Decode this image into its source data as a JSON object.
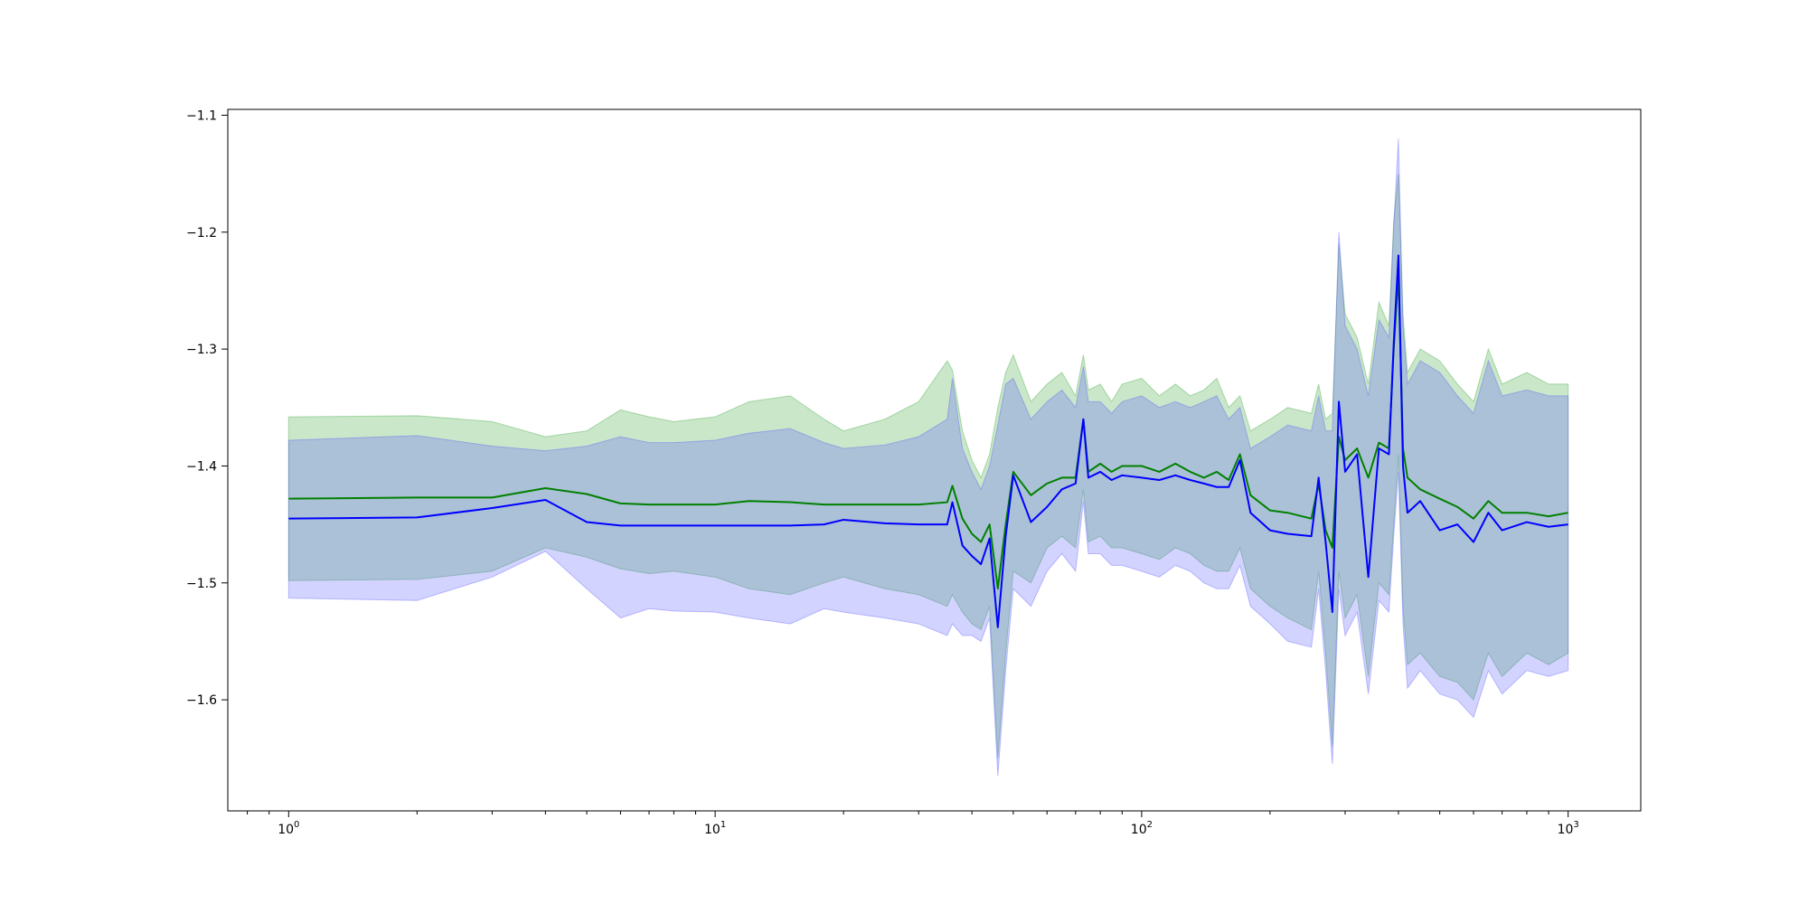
{
  "chart_data": {
    "type": "line",
    "title": "",
    "xlabel": "",
    "ylabel": "",
    "xscale": "log",
    "xlim": [
      0.72,
      1480
    ],
    "ylim": [
      -1.695,
      -1.095
    ],
    "grid": false,
    "legend": "none",
    "x_ticks": [
      {
        "value": 1,
        "base": "10",
        "exp": "0"
      },
      {
        "value": 10,
        "base": "10",
        "exp": "1"
      },
      {
        "value": 100,
        "base": "10",
        "exp": "2"
      },
      {
        "value": 1000,
        "base": "10",
        "exp": "3"
      }
    ],
    "y_ticks": [
      {
        "value": -1.1,
        "label": "−1.1"
      },
      {
        "value": -1.2,
        "label": "−1.2"
      },
      {
        "value": -1.3,
        "label": "−1.3"
      },
      {
        "value": -1.4,
        "label": "−1.4"
      },
      {
        "value": -1.5,
        "label": "−1.5"
      },
      {
        "value": -1.6,
        "label": "−1.6"
      }
    ],
    "colors": {
      "green_line": "#008000",
      "blue_line": "#0000ff",
      "green_band": "#2ca02c",
      "blue_band": "#4f4fff"
    },
    "series": [
      {
        "color": "green",
        "x": [
          1,
          2,
          3,
          4,
          5,
          6,
          7,
          8,
          10,
          12,
          15,
          18,
          20,
          25,
          30,
          35,
          36,
          38,
          40,
          42,
          44,
          46,
          48,
          50,
          55,
          60,
          65,
          70,
          73,
          75,
          80,
          85,
          90,
          100,
          110,
          120,
          130,
          140,
          150,
          160,
          170,
          180,
          200,
          220,
          250,
          260,
          270,
          280,
          290,
          300,
          320,
          340,
          360,
          380,
          390,
          400,
          410,
          420,
          450,
          500,
          550,
          600,
          650,
          700,
          800,
          900,
          1000
        ],
        "y": [
          -1.428,
          -1.427,
          -1.427,
          -1.419,
          -1.424,
          -1.432,
          -1.433,
          -1.433,
          -1.433,
          -1.43,
          -1.431,
          -1.433,
          -1.433,
          -1.433,
          -1.433,
          -1.431,
          -1.417,
          -1.445,
          -1.458,
          -1.465,
          -1.45,
          -1.505,
          -1.45,
          -1.405,
          -1.425,
          -1.415,
          -1.41,
          -1.41,
          -1.36,
          -1.405,
          -1.398,
          -1.405,
          -1.4,
          -1.4,
          -1.405,
          -1.398,
          -1.405,
          -1.41,
          -1.405,
          -1.412,
          -1.39,
          -1.425,
          -1.438,
          -1.44,
          -1.445,
          -1.415,
          -1.455,
          -1.47,
          -1.375,
          -1.395,
          -1.385,
          -1.41,
          -1.38,
          -1.385,
          -1.3,
          -1.235,
          -1.385,
          -1.41,
          -1.42,
          -1.428,
          -1.435,
          -1.445,
          -1.43,
          -1.44,
          -1.44,
          -1.443,
          -1.44
        ]
      },
      {
        "color": "blue",
        "x": [
          1,
          2,
          3,
          4,
          5,
          6,
          7,
          8,
          10,
          12,
          15,
          18,
          20,
          25,
          30,
          35,
          36,
          38,
          40,
          42,
          44,
          46,
          48,
          50,
          55,
          60,
          65,
          70,
          73,
          75,
          80,
          85,
          90,
          100,
          110,
          120,
          130,
          140,
          150,
          160,
          170,
          180,
          200,
          220,
          250,
          260,
          270,
          280,
          290,
          300,
          320,
          340,
          360,
          380,
          390,
          400,
          410,
          420,
          450,
          500,
          550,
          600,
          650,
          700,
          800,
          900,
          1000
        ],
        "y": [
          -1.445,
          -1.444,
          -1.436,
          -1.429,
          -1.448,
          -1.451,
          -1.451,
          -1.451,
          -1.451,
          -1.451,
          -1.451,
          -1.45,
          -1.446,
          -1.449,
          -1.45,
          -1.45,
          -1.431,
          -1.468,
          -1.477,
          -1.484,
          -1.462,
          -1.538,
          -1.46,
          -1.408,
          -1.448,
          -1.435,
          -1.42,
          -1.415,
          -1.36,
          -1.41,
          -1.405,
          -1.412,
          -1.408,
          -1.41,
          -1.412,
          -1.408,
          -1.412,
          -1.415,
          -1.418,
          -1.418,
          -1.395,
          -1.44,
          -1.455,
          -1.458,
          -1.46,
          -1.41,
          -1.465,
          -1.525,
          -1.345,
          -1.405,
          -1.39,
          -1.495,
          -1.385,
          -1.39,
          -1.295,
          -1.22,
          -1.4,
          -1.44,
          -1.43,
          -1.455,
          -1.45,
          -1.465,
          -1.44,
          -1.455,
          -1.448,
          -1.452,
          -1.45
        ]
      }
    ],
    "bands": [
      {
        "color": "green",
        "x": [
          1,
          2,
          3,
          4,
          5,
          6,
          7,
          8,
          10,
          12,
          15,
          18,
          20,
          25,
          30,
          35,
          36,
          38,
          40,
          42,
          44,
          46,
          48,
          50,
          55,
          60,
          65,
          70,
          73,
          75,
          80,
          85,
          90,
          100,
          110,
          120,
          130,
          140,
          150,
          160,
          170,
          180,
          200,
          220,
          250,
          260,
          270,
          280,
          290,
          300,
          320,
          340,
          360,
          380,
          390,
          400,
          410,
          420,
          450,
          500,
          550,
          600,
          650,
          700,
          800,
          900,
          1000
        ],
        "upper": [
          -1.358,
          -1.357,
          -1.362,
          -1.375,
          -1.37,
          -1.352,
          -1.358,
          -1.362,
          -1.358,
          -1.345,
          -1.34,
          -1.36,
          -1.37,
          -1.36,
          -1.345,
          -1.31,
          -1.318,
          -1.37,
          -1.395,
          -1.41,
          -1.39,
          -1.35,
          -1.32,
          -1.305,
          -1.345,
          -1.33,
          -1.32,
          -1.34,
          -1.305,
          -1.335,
          -1.33,
          -1.345,
          -1.33,
          -1.325,
          -1.34,
          -1.33,
          -1.34,
          -1.335,
          -1.325,
          -1.35,
          -1.34,
          -1.37,
          -1.36,
          -1.35,
          -1.355,
          -1.33,
          -1.36,
          -1.355,
          -1.21,
          -1.27,
          -1.29,
          -1.33,
          -1.26,
          -1.28,
          -1.19,
          -1.15,
          -1.27,
          -1.32,
          -1.3,
          -1.31,
          -1.33,
          -1.345,
          -1.3,
          -1.33,
          -1.32,
          -1.33,
          -1.33
        ],
        "lower": [
          -1.498,
          -1.497,
          -1.49,
          -1.47,
          -1.478,
          -1.488,
          -1.492,
          -1.49,
          -1.495,
          -1.505,
          -1.51,
          -1.5,
          -1.495,
          -1.505,
          -1.51,
          -1.52,
          -1.51,
          -1.525,
          -1.535,
          -1.54,
          -1.52,
          -1.65,
          -1.56,
          -1.49,
          -1.5,
          -1.47,
          -1.46,
          -1.47,
          -1.42,
          -1.465,
          -1.46,
          -1.47,
          -1.47,
          -1.475,
          -1.48,
          -1.47,
          -1.475,
          -1.485,
          -1.49,
          -1.49,
          -1.47,
          -1.505,
          -1.52,
          -1.53,
          -1.54,
          -1.49,
          -1.56,
          -1.64,
          -1.49,
          -1.53,
          -1.51,
          -1.58,
          -1.5,
          -1.51,
          -1.45,
          -1.39,
          -1.52,
          -1.57,
          -1.56,
          -1.58,
          -1.585,
          -1.6,
          -1.56,
          -1.58,
          -1.56,
          -1.57,
          -1.56
        ]
      },
      {
        "color": "blue",
        "x": [
          1,
          2,
          3,
          4,
          5,
          6,
          7,
          8,
          10,
          12,
          15,
          18,
          20,
          25,
          30,
          35,
          36,
          38,
          40,
          42,
          44,
          46,
          48,
          50,
          55,
          60,
          65,
          70,
          73,
          75,
          80,
          85,
          90,
          100,
          110,
          120,
          130,
          140,
          150,
          160,
          170,
          180,
          200,
          220,
          250,
          260,
          270,
          280,
          290,
          300,
          320,
          340,
          360,
          380,
          390,
          400,
          410,
          420,
          450,
          500,
          550,
          600,
          650,
          700,
          800,
          900,
          1000
        ],
        "upper": [
          -1.378,
          -1.374,
          -1.383,
          -1.387,
          -1.383,
          -1.375,
          -1.38,
          -1.38,
          -1.378,
          -1.372,
          -1.368,
          -1.38,
          -1.385,
          -1.382,
          -1.375,
          -1.36,
          -1.325,
          -1.385,
          -1.405,
          -1.42,
          -1.4,
          -1.365,
          -1.33,
          -1.325,
          -1.36,
          -1.345,
          -1.335,
          -1.35,
          -1.315,
          -1.345,
          -1.345,
          -1.355,
          -1.345,
          -1.34,
          -1.35,
          -1.345,
          -1.35,
          -1.345,
          -1.34,
          -1.36,
          -1.35,
          -1.385,
          -1.375,
          -1.365,
          -1.37,
          -1.34,
          -1.37,
          -1.37,
          -1.2,
          -1.28,
          -1.3,
          -1.34,
          -1.275,
          -1.29,
          -1.195,
          -1.12,
          -1.28,
          -1.33,
          -1.31,
          -1.32,
          -1.34,
          -1.355,
          -1.31,
          -1.34,
          -1.335,
          -1.34,
          -1.34
        ],
        "lower": [
          -1.513,
          -1.515,
          -1.495,
          -1.473,
          -1.505,
          -1.53,
          -1.522,
          -1.524,
          -1.525,
          -1.53,
          -1.535,
          -1.522,
          -1.525,
          -1.53,
          -1.535,
          -1.545,
          -1.535,
          -1.545,
          -1.545,
          -1.55,
          -1.53,
          -1.665,
          -1.575,
          -1.505,
          -1.52,
          -1.49,
          -1.475,
          -1.49,
          -1.43,
          -1.475,
          -1.475,
          -1.485,
          -1.485,
          -1.49,
          -1.495,
          -1.485,
          -1.49,
          -1.5,
          -1.505,
          -1.505,
          -1.485,
          -1.52,
          -1.535,
          -1.55,
          -1.555,
          -1.505,
          -1.575,
          -1.655,
          -1.505,
          -1.545,
          -1.525,
          -1.595,
          -1.515,
          -1.525,
          -1.46,
          -1.405,
          -1.535,
          -1.59,
          -1.575,
          -1.595,
          -1.6,
          -1.615,
          -1.575,
          -1.595,
          -1.575,
          -1.58,
          -1.575
        ]
      }
    ]
  }
}
